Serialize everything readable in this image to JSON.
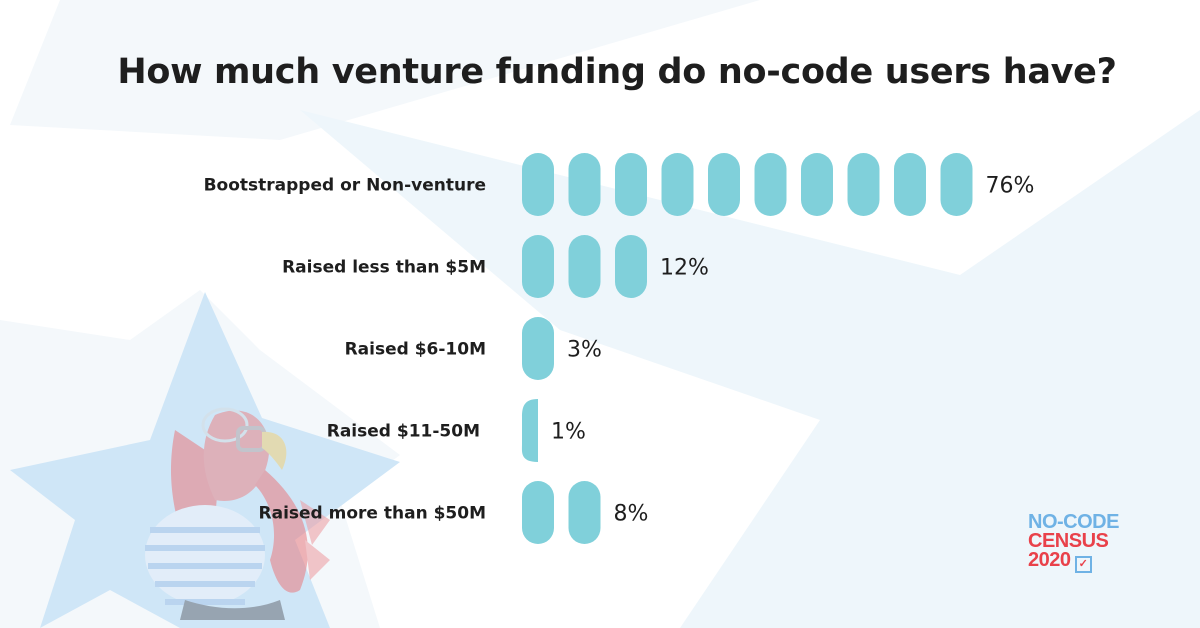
{
  "chart_data": {
    "type": "bar",
    "orientation": "horizontal",
    "title": "How much venture funding do no-code users have?",
    "categories": [
      "Bootstrapped or Non-venture",
      "Raised less than $5M",
      "Raised $6-10M",
      "Raised $11-50M",
      "Raised more than $50M"
    ],
    "values": [
      76,
      12,
      3,
      1,
      8
    ],
    "value_labels": [
      "76%",
      "12%",
      "3%",
      "1%",
      "8%"
    ],
    "unit": "%",
    "pill_count": [
      10,
      3,
      1,
      0.5,
      2
    ],
    "bar_color": "#80d0da",
    "grid": false,
    "legend": "none"
  },
  "logo": {
    "line1": "NO-CODE",
    "line2": "CENSUS",
    "line3": "2020",
    "colors": {
      "blue": "#6fb2e5",
      "red": "#e9414a"
    }
  },
  "background": {
    "star_color": "#cfe6f7",
    "light_shape_color": "#eef6fb",
    "mascot": "eagle-mascot"
  }
}
